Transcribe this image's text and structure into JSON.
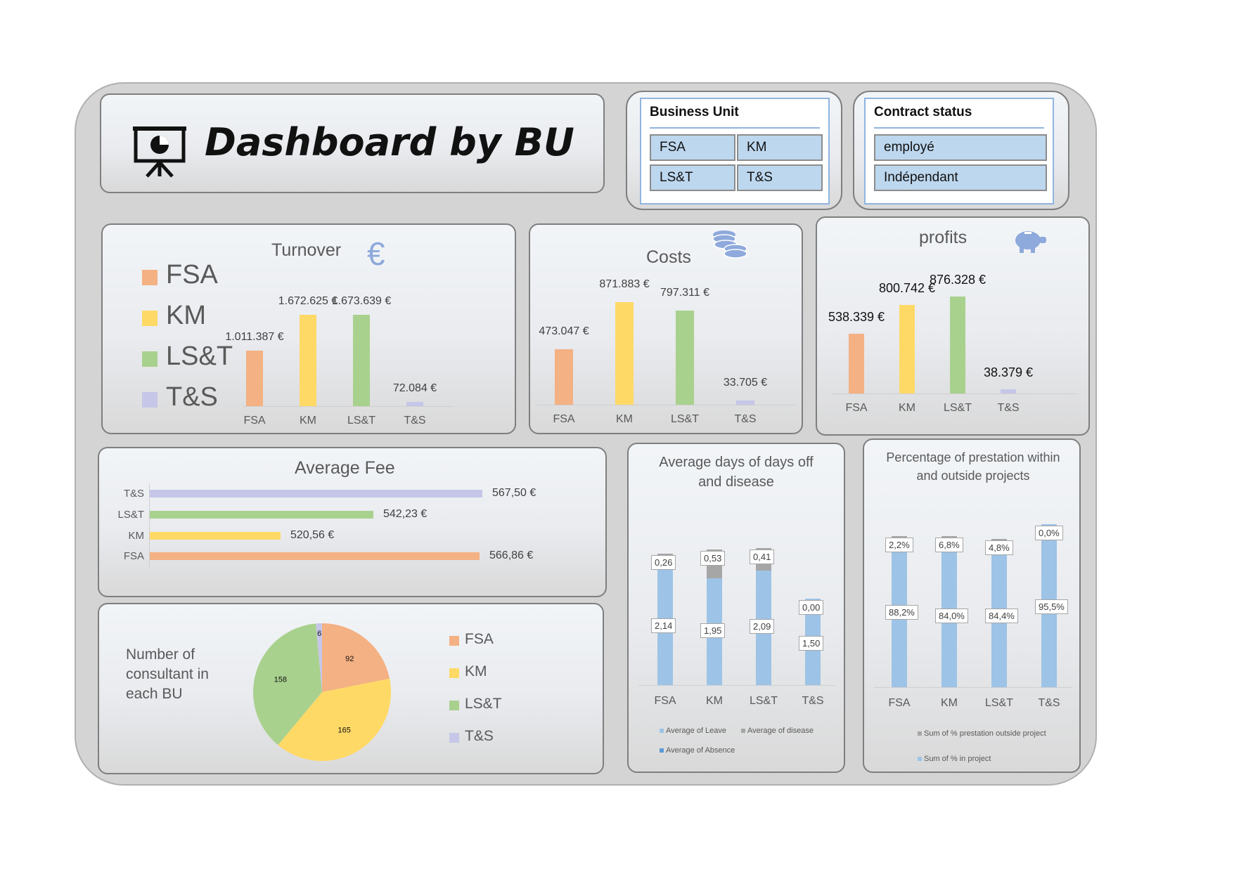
{
  "title": "Dashboard by BU",
  "slicers": {
    "business_unit": {
      "header": "Business Unit",
      "items": [
        "FSA",
        "KM",
        "LS&T",
        "T&S"
      ]
    },
    "contract_status": {
      "header": "Contract status",
      "items": [
        "employé",
        "Indépendant"
      ]
    }
  },
  "colors": {
    "FSA": "#f4b183",
    "KM": "#ffd966",
    "LS&T": "#a9d18e",
    "T&S": "#c5c6e8",
    "blue": "#9dc3e6",
    "grey": "#a6a6a6"
  },
  "turnover": {
    "title": "Turnover",
    "legend": [
      "FSA",
      "KM",
      "LS&T",
      "T&S"
    ],
    "chart_data": {
      "type": "bar",
      "categories": [
        "FSA",
        "KM",
        "LS&T",
        "T&S"
      ],
      "values": [
        1011387,
        1672625,
        1673639,
        72084
      ],
      "labels": [
        "1.011.387 €",
        "1.672.625 €",
        "1.673.639 €",
        "72.084 €"
      ]
    }
  },
  "costs": {
    "title": "Costs",
    "chart_data": {
      "type": "bar",
      "categories": [
        "FSA",
        "KM",
        "LS&T",
        "T&S"
      ],
      "values": [
        473047,
        871883,
        797311,
        33705
      ],
      "labels": [
        "473.047 €",
        "871.883 €",
        "797.311 €",
        "33.705 €"
      ]
    }
  },
  "profits": {
    "title": "profits",
    "chart_data": {
      "type": "bar",
      "categories": [
        "FSA",
        "KM",
        "LS&T",
        "T&S"
      ],
      "values": [
        538339,
        800742,
        876328,
        38379
      ],
      "labels": [
        "538.339 €",
        "800.742 €",
        "876.328 €",
        "38.379 €"
      ]
    }
  },
  "average_fee": {
    "title": "Average Fee",
    "chart_data": {
      "type": "bar",
      "orientation": "horizontal",
      "categories": [
        "T&S",
        "LS&T",
        "KM",
        "FSA"
      ],
      "values": [
        567.5,
        542.23,
        520.56,
        566.86
      ],
      "labels": [
        "567,50 €",
        "542,23 €",
        "520,56 €",
        "566,86 €"
      ]
    }
  },
  "consultants": {
    "title": "Number of consultant in each BU",
    "legend": [
      "FSA",
      "KM",
      "LS&T",
      "T&S"
    ],
    "chart_data": {
      "type": "pie",
      "categories": [
        "FSA",
        "KM",
        "LS&T",
        "T&S"
      ],
      "values": [
        92,
        165,
        158,
        6
      ]
    }
  },
  "days_off": {
    "title": "Average days of days off and disease",
    "chart_data": {
      "type": "bar",
      "stacked": true,
      "categories": [
        "FSA",
        "KM",
        "LS&T",
        "T&S"
      ],
      "series": [
        {
          "name": "Average of Leave",
          "values": [
            2.14,
            1.95,
            2.09,
            1.5
          ],
          "labels": [
            "2,14",
            "1,95",
            "2,09",
            "1,50"
          ]
        },
        {
          "name": "Average of disease",
          "values": [
            0.26,
            0.53,
            0.41,
            0.0
          ],
          "labels": [
            "0,26",
            "0,53",
            "0,41",
            "0,00"
          ]
        },
        {
          "name": "Average of Absence",
          "values": [
            0,
            0,
            0,
            0
          ]
        }
      ]
    }
  },
  "prestation": {
    "title": "Percentage of prestation within and outside projects",
    "chart_data": {
      "type": "bar",
      "stacked": true,
      "categories": [
        "FSA",
        "KM",
        "LS&T",
        "T&S"
      ],
      "series": [
        {
          "name": "Sum of % in  project",
          "values": [
            88.2,
            84.0,
            84.4,
            95.5
          ],
          "labels": [
            "88,2%",
            "84,0%",
            "84,4%",
            "95,5%"
          ]
        },
        {
          "name": "Sum of % prestation outside project",
          "values": [
            2.2,
            6.8,
            4.8,
            0.0
          ],
          "labels": [
            "2,2%",
            "6,8%",
            "4,8%",
            "0,0%"
          ]
        }
      ]
    }
  }
}
